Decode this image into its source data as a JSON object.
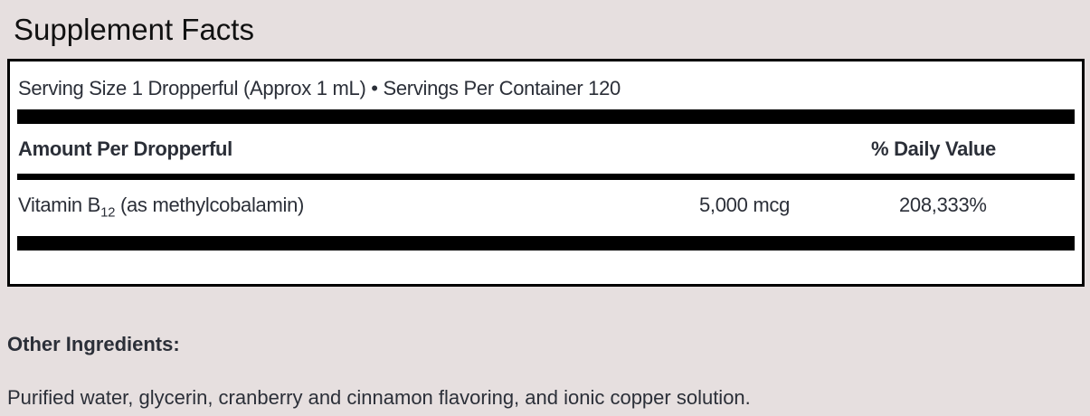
{
  "title": "Supplement Facts",
  "serving": "Serving Size 1 Dropperful (Approx 1 mL) • Servings Per Container 120",
  "header": {
    "amount": "Amount Per Dropperful",
    "dv": "% Daily Value"
  },
  "rows": [
    {
      "name": "Vitamin B",
      "sub": "12",
      "detail": " (as methylcobalamin)",
      "amount": "5,000 mcg",
      "dv": "208,333%"
    }
  ],
  "other": {
    "heading": "Other Ingredients:",
    "text": "Purified water, glycerin, cranberry and cinnamon flavoring, and ionic copper solution."
  }
}
